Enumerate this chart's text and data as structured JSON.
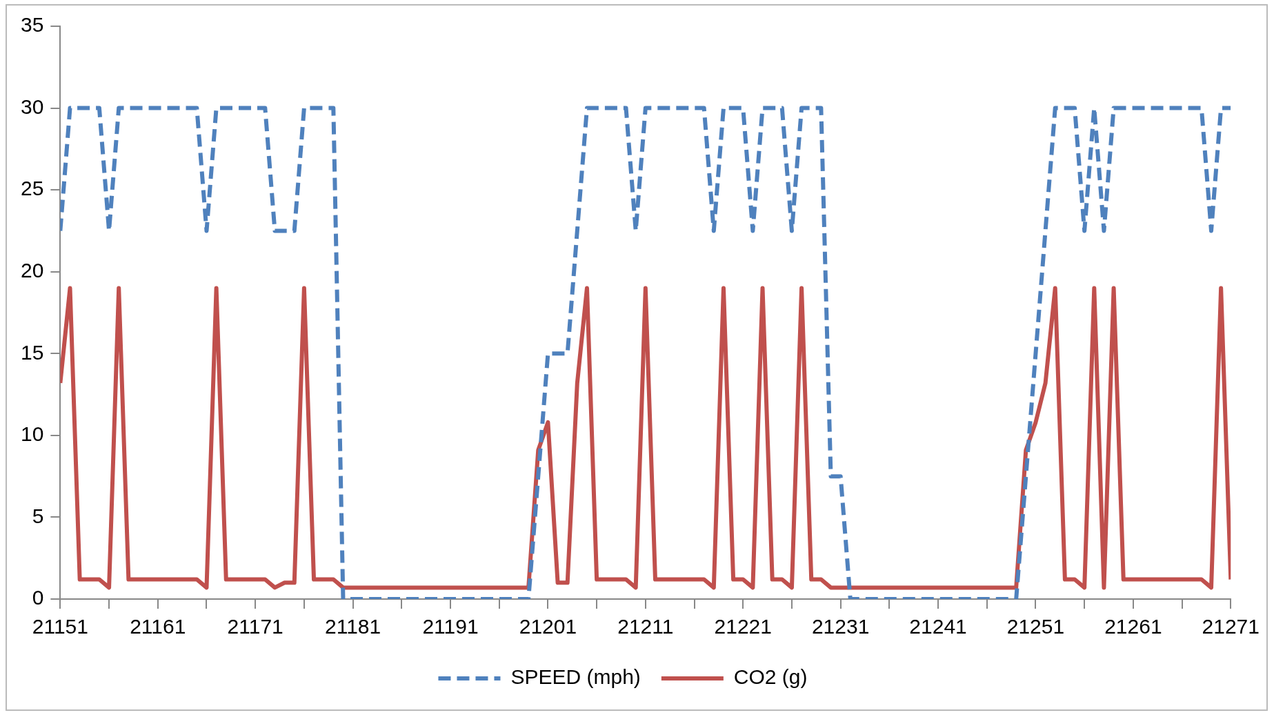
{
  "chart_data": {
    "type": "line",
    "xlim": [
      21151,
      21271
    ],
    "xticks": [
      21151,
      {
        "value": 21156,
        "label": null
      },
      21161,
      {
        "value": 21166,
        "label": null
      },
      21171,
      {
        "value": 21176,
        "label": null
      },
      21181,
      {
        "value": 21186,
        "label": null
      },
      21191,
      {
        "value": 21196,
        "label": null
      },
      21201,
      {
        "value": 21206,
        "label": null
      },
      21211,
      {
        "value": 21216,
        "label": null
      },
      21221,
      {
        "value": 21226,
        "label": null
      },
      21231,
      {
        "value": 21236,
        "label": null
      },
      21241,
      {
        "value": 21246,
        "label": null
      },
      21251,
      {
        "value": 21256,
        "label": null
      },
      21261,
      {
        "value": 21266,
        "label": null
      },
      21271
    ],
    "ylim": [
      0,
      35
    ],
    "yticks": [
      0,
      5,
      10,
      15,
      20,
      25,
      30,
      35
    ],
    "grid": false,
    "legend": "bottom",
    "marker": "none",
    "series": [
      {
        "name": "SPEED (mph)",
        "color": "#4f81bd",
        "line_style": "dashed",
        "x": [
          21151,
          21152,
          21155,
          21156,
          21157,
          21165,
          21166,
          21167,
          21172,
          21173,
          21175,
          21176,
          21179,
          21180,
          21199,
          21201,
          21203,
          21205,
          21209,
          21210,
          21211,
          21217,
          21218,
          21219,
          21221,
          21222,
          21223,
          21225,
          21226,
          21227,
          21229,
          21230,
          21231,
          21232,
          21249,
          21253,
          21255,
          21256,
          21257,
          21258,
          21259,
          21268,
          21269,
          21270,
          21271
        ],
        "values": [
          22.5,
          30,
          30,
          22.5,
          30,
          30,
          22.5,
          30,
          30,
          22.5,
          22.5,
          30,
          30,
          0,
          0,
          15,
          15,
          30,
          30,
          22.5,
          30,
          30,
          22.5,
          30,
          30,
          22.5,
          30,
          30,
          22.5,
          30,
          30,
          7.5,
          7.5,
          0,
          0,
          30,
          30,
          22.5,
          30,
          22.5,
          30,
          30,
          22.5,
          30,
          30
        ]
      },
      {
        "name": "CO2 (g)",
        "color": "#c0504d",
        "line_style": "solid",
        "x": [
          21151,
          21152,
          21153,
          21155,
          21156,
          21157,
          21158,
          21165,
          21166,
          21167,
          21168,
          21172,
          21173,
          21174,
          21175,
          21176,
          21177,
          21179,
          21180,
          21199,
          21200,
          21201,
          21202,
          21203,
          21204,
          21205,
          21206,
          21209,
          21210,
          21211,
          21212,
          21217,
          21218,
          21219,
          21220,
          21221,
          21222,
          21223,
          21224,
          21225,
          21226,
          21227,
          21228,
          21229,
          21230,
          21249,
          21250,
          21251,
          21252,
          21253,
          21254,
          21255,
          21256,
          21257,
          21258,
          21259,
          21260,
          21268,
          21269,
          21270,
          21271
        ],
        "values": [
          13.2,
          19,
          1.2,
          1.2,
          0.7,
          19,
          1.2,
          1.2,
          0.7,
          19,
          1.2,
          1.2,
          0.7,
          1,
          1,
          19,
          1.2,
          1.2,
          0.7,
          0.7,
          9.1,
          10.8,
          1,
          1,
          13.2,
          19,
          1.2,
          1.2,
          0.7,
          19,
          1.2,
          1.2,
          0.7,
          19,
          1.2,
          1.2,
          0.7,
          19,
          1.2,
          1.2,
          0.7,
          19,
          1.2,
          1.2,
          0.7,
          0.7,
          9.1,
          10.8,
          13.2,
          19,
          1.2,
          1.2,
          0.7,
          19,
          0.7,
          19,
          1.2,
          1.2,
          0.7,
          19,
          1.2
        ]
      }
    ]
  }
}
